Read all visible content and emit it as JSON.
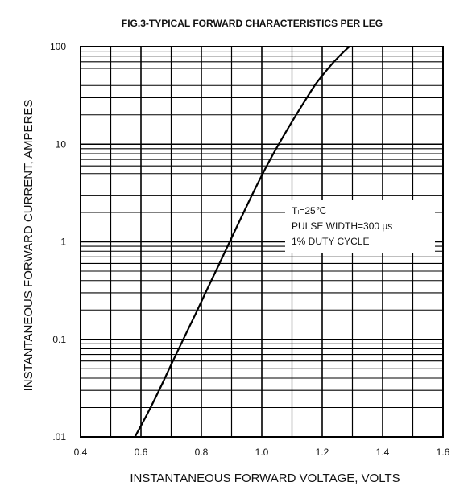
{
  "chart_data": {
    "type": "line",
    "title": "FIG.3-TYPICAL FORWARD CHARACTERISTICS PER LEG",
    "xlabel": "INSTANTANEOUS FORWARD VOLTAGE, VOLTS",
    "ylabel": "INSTANTANEOUS FORWARD CURRENT, AMPERES",
    "xlim": [
      0.4,
      1.6
    ],
    "ylim": [
      0.01,
      100
    ],
    "y_scale": "log",
    "grid": true,
    "x_ticks": [
      "0.4",
      "0.6",
      "0.8",
      "1.0",
      "1.2",
      "1.4",
      "1.6"
    ],
    "y_ticks": [
      ".01",
      "0.1",
      "1",
      "10",
      "100"
    ],
    "annotation": [
      "Tₗ=25℃",
      "PULSE WIDTH=300 μs",
      "1% DUTY CYCLE"
    ],
    "series": [
      {
        "x": [
          0.58,
          0.62,
          0.66,
          0.7,
          0.74,
          0.78,
          0.82,
          0.86,
          0.9,
          0.94,
          0.98,
          1.02,
          1.06,
          1.1,
          1.14,
          1.18,
          1.22,
          1.26,
          1.29
        ],
        "y": [
          0.01,
          0.017,
          0.03,
          0.055,
          0.1,
          0.18,
          0.33,
          0.6,
          1.1,
          2.0,
          3.6,
          6.3,
          10.5,
          17,
          27,
          42,
          60,
          82,
          100
        ]
      }
    ]
  }
}
